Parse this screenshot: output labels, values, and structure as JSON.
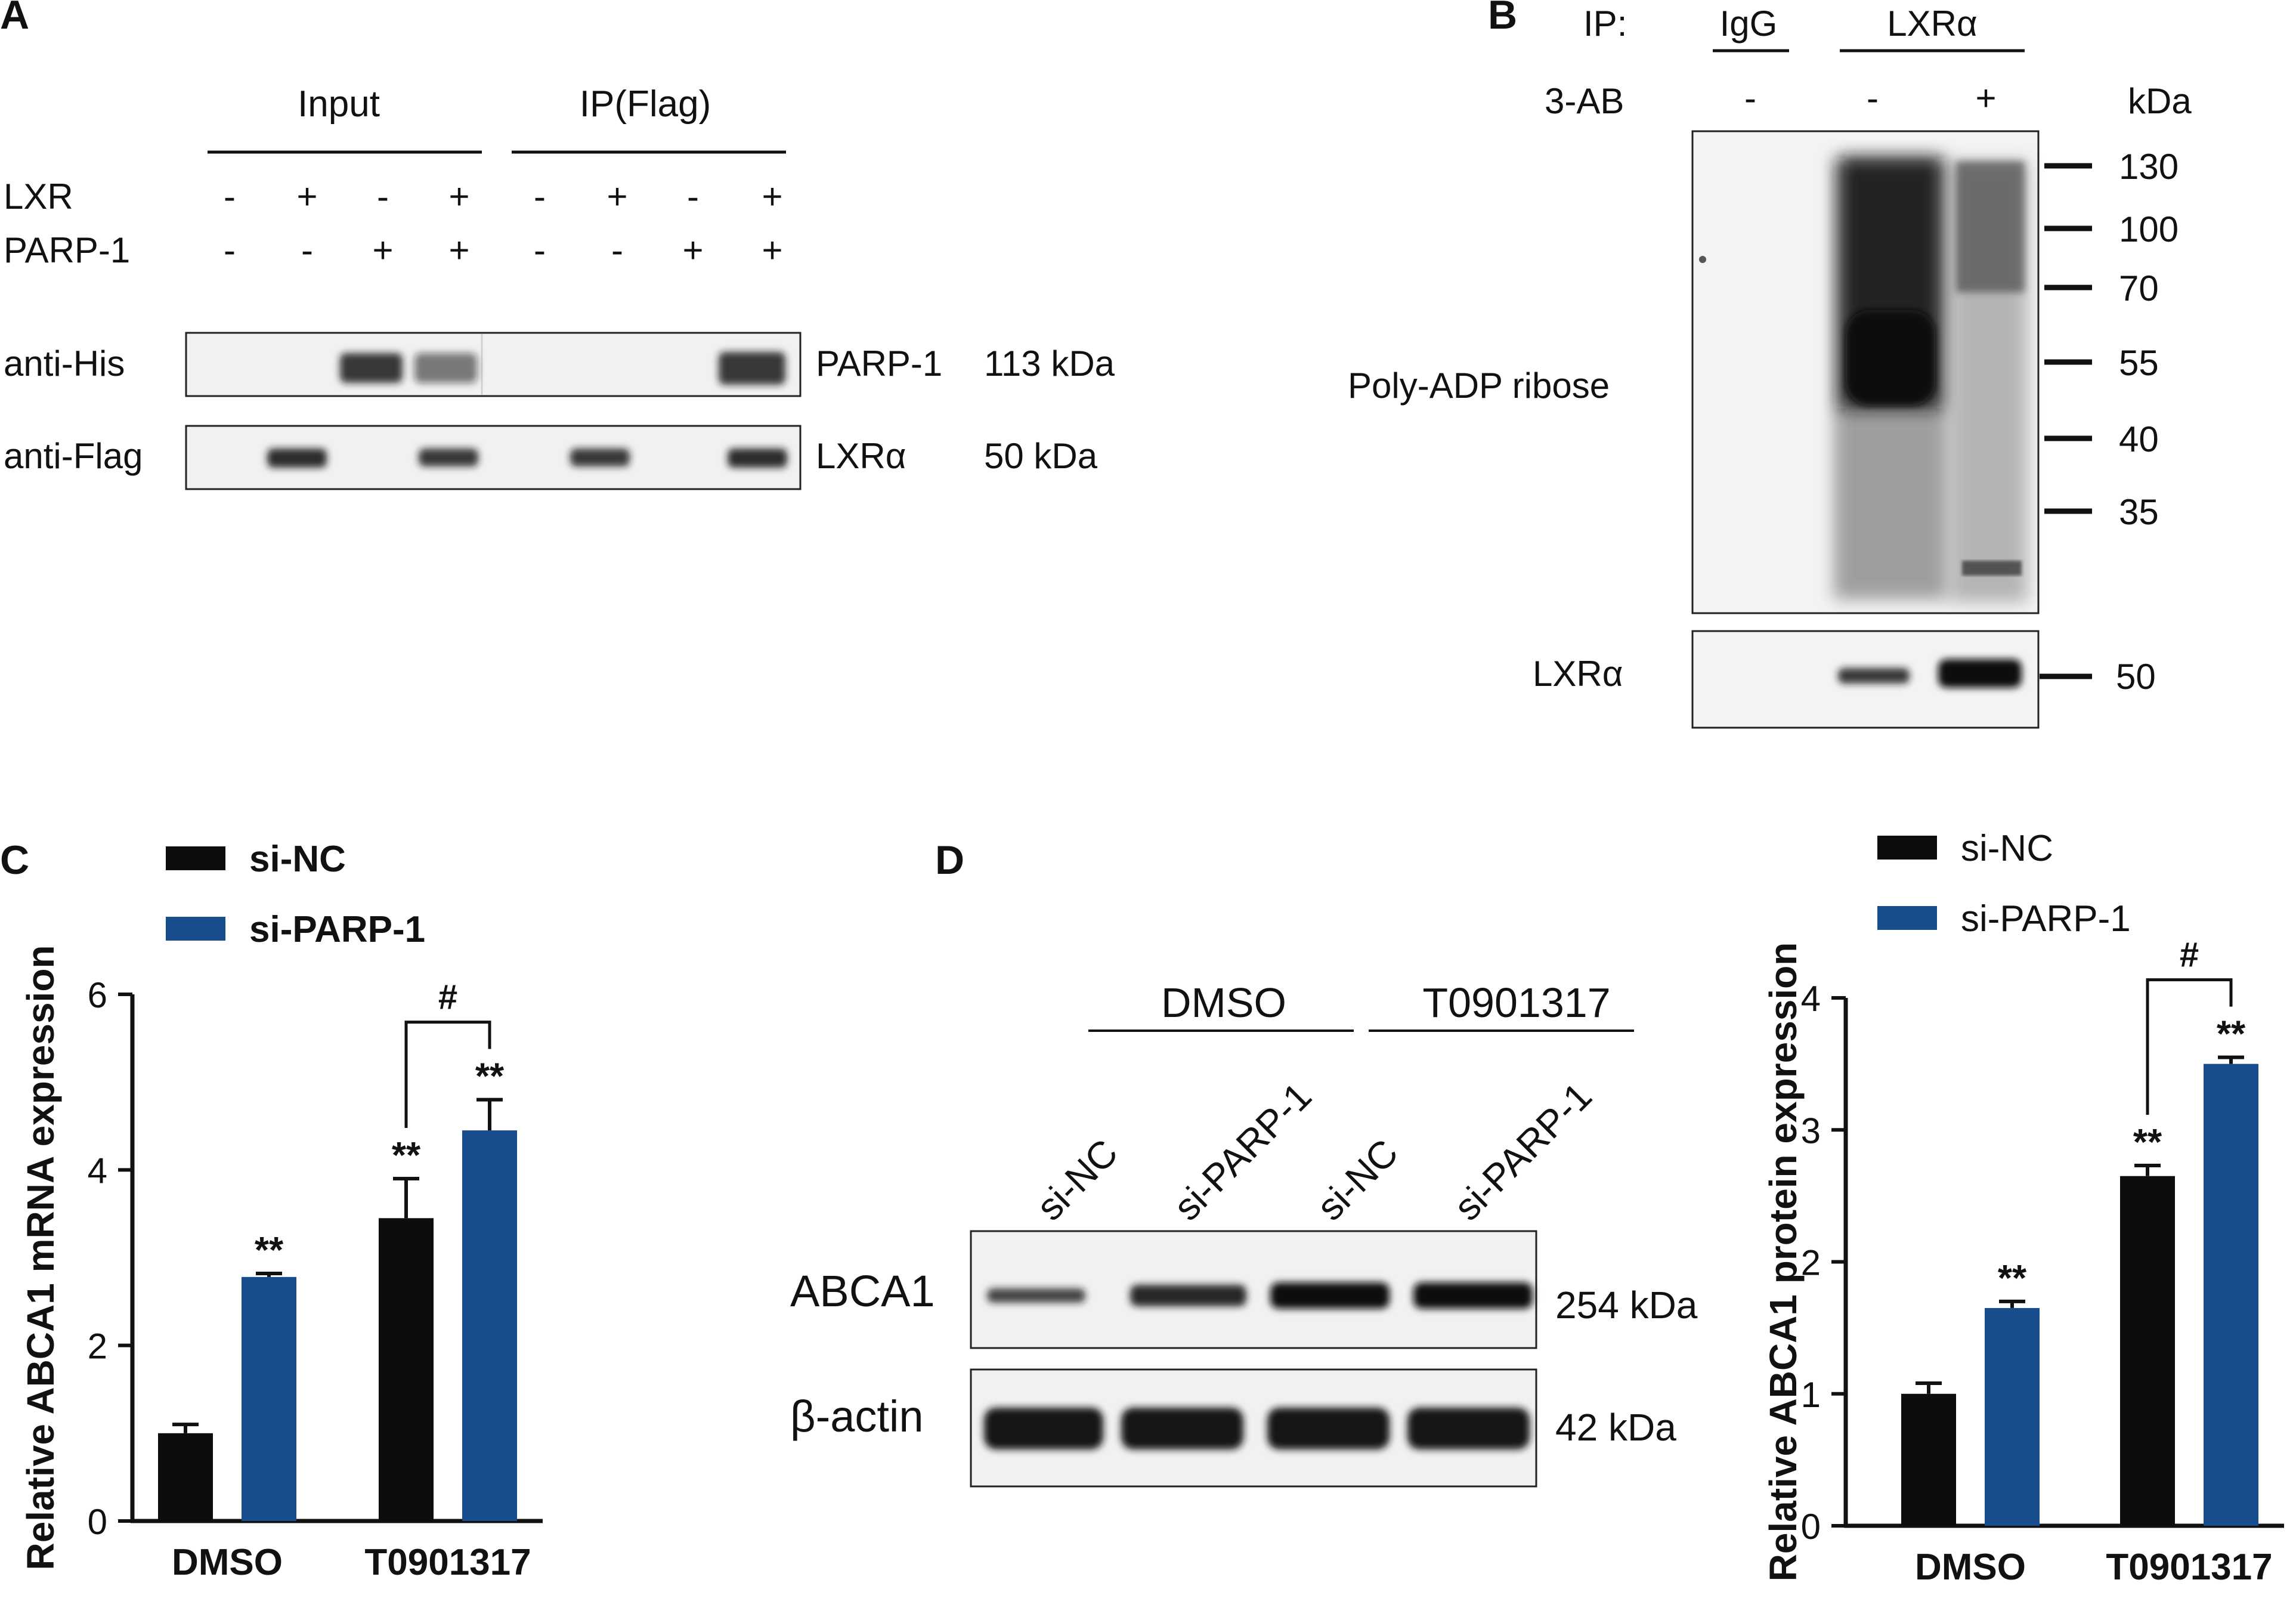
{
  "colors": {
    "series_black": "#0d0d0d",
    "series_blue": "#184d8d",
    "blot_bg": "#f1f1f1",
    "band": "#1a1a1a",
    "text": "#111111"
  },
  "panel_a": {
    "letter": "A",
    "groups": [
      "Input",
      "IP(Flag)"
    ],
    "row_labels": [
      "LXR",
      "PARP-1"
    ],
    "lxr_signs": [
      "-",
      "+",
      "-",
      "+",
      "-",
      "+",
      "-",
      "+"
    ],
    "parp_signs": [
      "-",
      "-",
      "+",
      "+",
      "-",
      "-",
      "+",
      "+"
    ],
    "blots": [
      {
        "antibody": "anti-His",
        "protein": "PARP-1",
        "size": "113 kDa"
      },
      {
        "antibody": "anti-Flag",
        "protein": "LXRα",
        "size": "50 kDa"
      }
    ]
  },
  "panel_b": {
    "letter": "B",
    "ip_label": "IP:",
    "ip_groups": [
      "IgG",
      "LXRα"
    ],
    "treatment_label": "3-AB",
    "treatment_signs": [
      "-",
      "-",
      "+"
    ],
    "unit": "kDa",
    "markers": [
      "130",
      "100",
      "70",
      "55",
      "40",
      "35"
    ],
    "blot_labels": [
      "Poly-ADP ribose",
      "LXRα"
    ],
    "lower_marker": "50"
  },
  "panel_d_blot": {
    "letter": "D",
    "groups": [
      "DMSO",
      "T0901317"
    ],
    "lanes": [
      "si-NC",
      "si-PARP-1",
      "si-NC",
      "si-PARP-1"
    ],
    "blots": [
      {
        "protein": "ABCA1",
        "size": "254 kDa"
      },
      {
        "protein": "β-actin",
        "size": "42 kDa"
      }
    ]
  },
  "chart_data": [
    {
      "panel": "C",
      "type": "bar",
      "categories": [
        "DMSO",
        "T0901317"
      ],
      "series": [
        {
          "name": "si-NC",
          "values": [
            1.0,
            3.45
          ],
          "errors": [
            0.1,
            0.45
          ],
          "marks": [
            "",
            "**"
          ]
        },
        {
          "name": "si-PARP-1",
          "values": [
            2.78,
            4.45
          ],
          "errors": [
            0.04,
            0.35
          ],
          "marks": [
            "**",
            "**"
          ]
        }
      ],
      "ylabel": "Relative ABCA1 mRNA expression",
      "ylim": [
        0,
        6
      ],
      "yticks": [
        "0",
        "2",
        "4",
        "6"
      ],
      "bracket": {
        "category": "T0901317",
        "label": "#"
      },
      "legend": "top-left"
    },
    {
      "panel": "D",
      "type": "bar",
      "categories": [
        "DMSO",
        "T0901317"
      ],
      "series": [
        {
          "name": "si-NC",
          "values": [
            1.0,
            2.65
          ],
          "errors": [
            0.08,
            0.08
          ],
          "marks": [
            "",
            "**"
          ]
        },
        {
          "name": "si-PARP-1",
          "values": [
            1.65,
            3.5
          ],
          "errors": [
            0.05,
            0.05
          ],
          "marks": [
            "**",
            "**"
          ]
        }
      ],
      "ylabel": "Relative ABCA1 protein expression",
      "ylim": [
        0,
        4
      ],
      "yticks": [
        "0",
        "1",
        "2",
        "3",
        "4"
      ],
      "bracket": {
        "category": "T0901317",
        "label": "#"
      },
      "legend": "top-left"
    }
  ]
}
